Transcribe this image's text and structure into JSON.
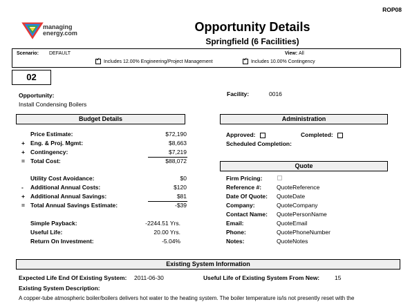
{
  "report_code": "ROP08",
  "logo": {
    "line1": "managing",
    "line2": "energy.com"
  },
  "title": "Opportunity Details",
  "subtitle": "Springfield (6 Facilities)",
  "scenario_label": "Scenario:",
  "scenario_value": "DEFAULT",
  "view_label": "View:",
  "view_value": "All",
  "includes_engineering": "Includes 12.00% Engineering/Project Management",
  "includes_contingency": "Includes 10.00% Contingency",
  "opportunity_number": "02",
  "opportunity_label": "Opportunity:",
  "opportunity_value": "Install Condensing Boilers",
  "facility_label": "Facility:",
  "facility_value": "0016",
  "budget": {
    "header": "Budget Details",
    "price_label": "Price Estimate:",
    "price_value": "$72,190",
    "eng_sign": "+",
    "eng_label": "Eng. & Proj. Mgmt:",
    "eng_value": "$8,663",
    "cont_sign": "+",
    "cont_label": "Contingency:",
    "cont_value": "$7,219",
    "total_sign": "=",
    "total_label": "Total Cost:",
    "total_value": "$88,072",
    "util_label": "Utility Cost Avoidance:",
    "util_value": "$0",
    "addcost_sign": "-",
    "addcost_label": "Additional Annual Costs:",
    "addcost_value": "$120",
    "addsav_sign": "+",
    "addsav_label": "Additional Annual Savings:",
    "addsav_value": "$81",
    "totsav_sign": "=",
    "totsav_label": "Total Annual Savings Estimate:",
    "totsav_value": "-$39",
    "payback_label": "Simple Payback:",
    "payback_value": "-2244.51 Yrs.",
    "life_label": "Useful Life:",
    "life_value": "20.00 Yrs.",
    "roi_label": "Return On Investment:",
    "roi_value": "-5.04%"
  },
  "admin": {
    "header": "Administration",
    "approved_label": "Approved:",
    "completed_label": "Completed:",
    "scheduled_label": "Scheduled Completion:"
  },
  "quote": {
    "header": "Quote",
    "firm_label": "Firm Pricing:",
    "ref_label": "Reference #:",
    "ref_value": "QuoteReference",
    "date_label": "Date Of Quote:",
    "date_value": "QuoteDate",
    "company_label": "Company:",
    "company_value": "QuoteCompany",
    "contact_label": "Contact Name:",
    "contact_value": "QuotePersonName",
    "email_label": "Email:",
    "email_value": "QuoteEmail",
    "phone_label": "Phone:",
    "phone_value": "QuotePhoneNumber",
    "notes_label": "Notes:",
    "notes_value": "QuoteNotes"
  },
  "existing": {
    "header": "Existing System Information",
    "expected_label": "Expected Life End Of Existing System:",
    "expected_value": "2011-06-30",
    "useful_label": "Useful Life of Existing System From New:",
    "useful_value": "15",
    "desc_label": "Existing System Description:",
    "desc_value": "A copper-tube atmospheric boiler/boilers delivers hot water to the heating system.  The boiler temperature is/is not presently reset with the"
  }
}
